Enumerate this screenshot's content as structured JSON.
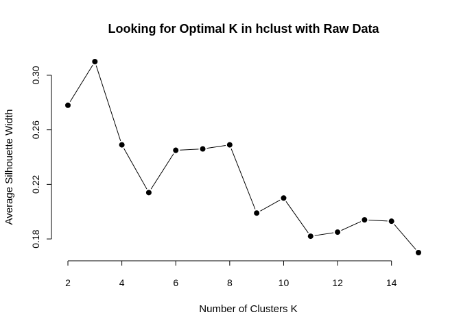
{
  "chart_data": {
    "type": "line",
    "title": "Looking for Optimal K in hclust with Raw Data",
    "xlabel": "Number of Clusters K",
    "ylabel": "Average Silhouette Width",
    "xlim": [
      2,
      15
    ],
    "ylim": [
      0.17,
      0.31
    ],
    "xticks": [
      2,
      4,
      6,
      8,
      10,
      12,
      14
    ],
    "xtick_labels": [
      "2",
      "4",
      "6",
      "8",
      "10",
      "12",
      "14"
    ],
    "yticks": [
      0.18,
      0.22,
      0.26,
      0.3
    ],
    "ytick_labels": [
      "0.18",
      "0.22",
      "0.26",
      "0.30"
    ],
    "grid": false,
    "series": [
      {
        "x": [
          2,
          3,
          4,
          5,
          6,
          7,
          8,
          9,
          10,
          11,
          12,
          13,
          14,
          15
        ],
        "values": [
          0.278,
          0.31,
          0.249,
          0.214,
          0.245,
          0.246,
          0.249,
          0.199,
          0.21,
          0.182,
          0.185,
          0.194,
          0.193,
          0.17
        ],
        "color": "#000000",
        "marker": "filled-circle"
      }
    ]
  }
}
